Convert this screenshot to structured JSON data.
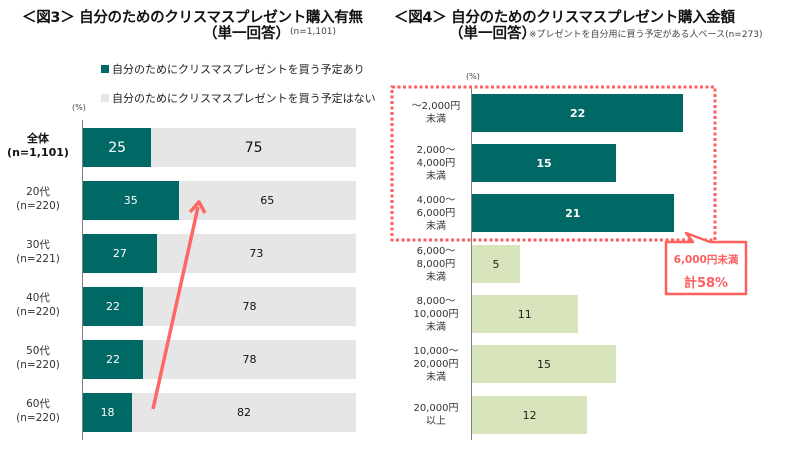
{
  "colors": {
    "dark": "#006966",
    "light_gray": "#e6e6e6",
    "light_green": "#d8e4bc",
    "accent": "#ff5f5f"
  },
  "left": {
    "title": "＜図3＞ 自分のためのクリスマスプレゼント購入有無",
    "subtitle": "（単一回答）",
    "note": "(n=1,101)",
    "unit": "(%)",
    "legend": [
      {
        "label": "自分のためにクリスマスプレゼントを買う予定あり",
        "color": "#006966"
      },
      {
        "label": "自分のためにクリスマスプレゼントを買う予定はない",
        "color": "#e6e6e6"
      }
    ]
  },
  "right": {
    "title": "＜図4＞ 自分のためのクリスマスプレゼント購入金額",
    "subtitle": "（単一回答）",
    "note": "※プレゼントを自分用に買う予定がある人ベース(n=273)",
    "unit": "(%)",
    "callout_line1": "6,000円未満",
    "callout_line2": "計58%"
  },
  "chart_data": [
    {
      "type": "bar",
      "orientation": "horizontal",
      "stacked": true,
      "title": "＜図3＞ 自分のためのクリスマスプレゼント購入有無（単一回答）(n=1,101)",
      "xlabel": "(%)",
      "xlim": [
        0,
        100
      ],
      "categories": [
        {
          "name": "全体",
          "n": "(n=1,101)",
          "bold": true
        },
        {
          "name": "20代",
          "n": "(n=220)"
        },
        {
          "name": "30代",
          "n": "(n=221)"
        },
        {
          "name": "40代",
          "n": "(n=220)"
        },
        {
          "name": "50代",
          "n": "(n=220)"
        },
        {
          "name": "60代",
          "n": "(n=220)"
        }
      ],
      "series": [
        {
          "name": "自分のためにクリスマスプレゼントを買う予定あり",
          "values": [
            25,
            35,
            27,
            22,
            22,
            18
          ]
        },
        {
          "name": "自分のためにクリスマスプレゼントを買う予定はない",
          "values": [
            75,
            65,
            73,
            78,
            78,
            82
          ]
        }
      ],
      "legend": "top",
      "annotations": [
        "arrow from 60代 to 20代 indicating increase"
      ]
    },
    {
      "type": "bar",
      "orientation": "horizontal",
      "title": "＜図4＞ 自分のためのクリスマスプレゼント購入金額（単一回答）※プレゼントを自分用に買う予定がある人ベース(n=273)",
      "xlabel": "(%)",
      "categories": [
        [
          "～2,000円",
          "未満"
        ],
        [
          "2,000～",
          "4,000円",
          "未満"
        ],
        [
          "4,000～",
          "6,000円",
          "未満"
        ],
        [
          "6,000～",
          "8,000円",
          "未満"
        ],
        [
          "8,000～",
          "10,000円",
          "未満"
        ],
        [
          "10,000～",
          "20,000円",
          "未満"
        ],
        [
          "20,000円",
          "以上"
        ]
      ],
      "values": [
        22,
        15,
        21,
        5,
        11,
        15,
        12
      ],
      "highlighted": [
        true,
        true,
        true,
        false,
        false,
        false,
        false
      ],
      "annotations": [
        "6,000円未満 計58%"
      ]
    }
  ]
}
